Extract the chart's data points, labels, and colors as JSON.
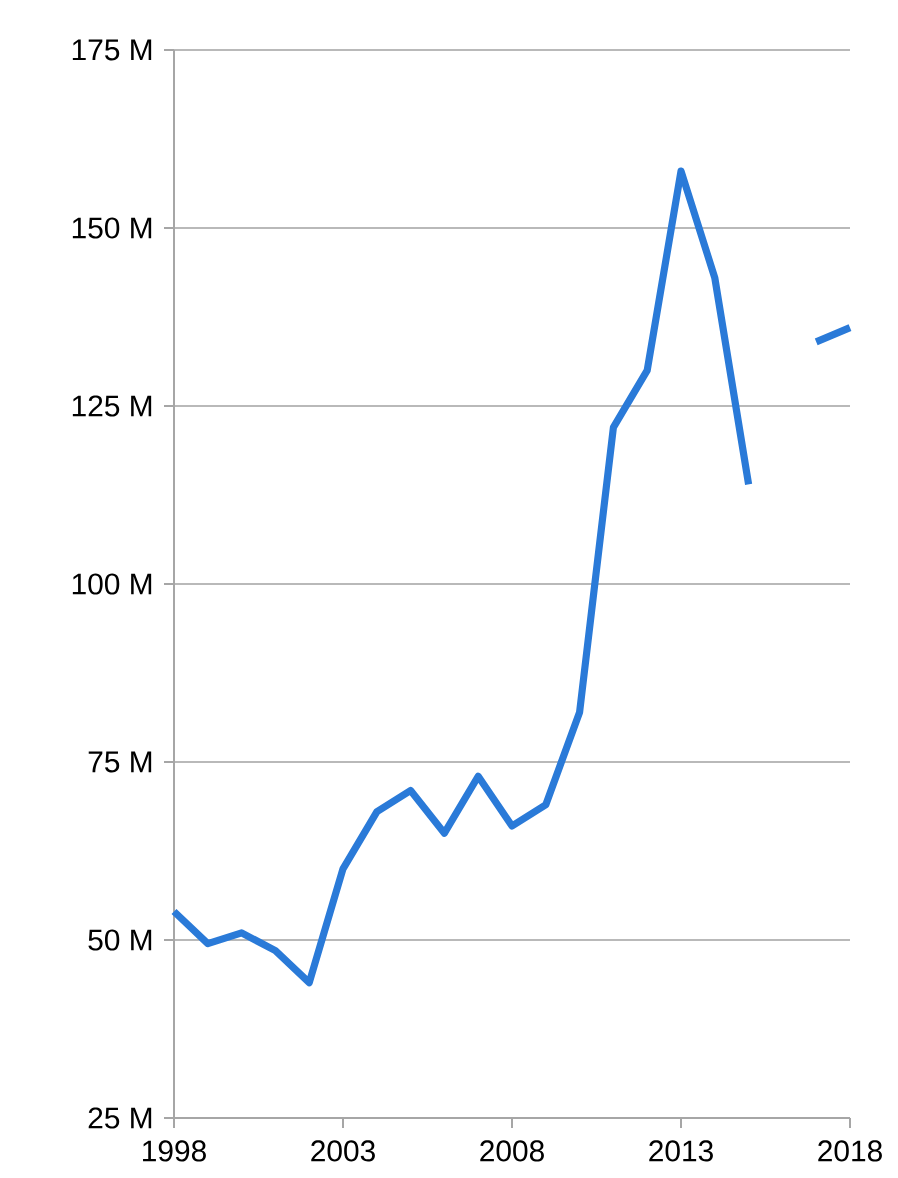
{
  "chart_data": {
    "type": "line",
    "x": [
      1998,
      1999,
      2000,
      2001,
      2002,
      2003,
      2004,
      2005,
      2006,
      2007,
      2008,
      2009,
      2010,
      2011,
      2012,
      2013,
      2014,
      2015,
      2016,
      2017,
      2018
    ],
    "values": [
      54,
      49.5,
      51,
      48.5,
      44,
      60,
      68,
      71,
      65,
      73,
      66,
      69,
      82,
      122,
      130,
      158,
      143,
      114,
      null,
      134,
      136
    ],
    "color": "#2a7ad8",
    "xlim": [
      1998,
      2018
    ],
    "xticks": [
      1998,
      2003,
      2008,
      2013,
      2018
    ],
    "ylim": [
      25,
      175
    ],
    "yticks": [
      {
        "value": 25,
        "label": "25 M"
      },
      {
        "value": 50,
        "label": "50 M"
      },
      {
        "value": 75,
        "label": "75 M"
      },
      {
        "value": 100,
        "label": "100 M"
      },
      {
        "value": 125,
        "label": "125 M"
      },
      {
        "value": 150,
        "label": "150 M"
      },
      {
        "value": 175,
        "label": "175 M"
      }
    ],
    "grid": "y",
    "marker": "none",
    "line_style": "solid"
  }
}
